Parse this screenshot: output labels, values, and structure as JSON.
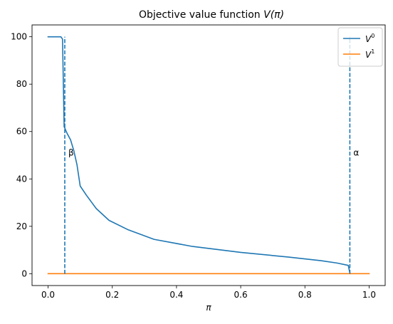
{
  "chart_data": {
    "type": "line",
    "title": "Objective value function V(π)",
    "title_parts": {
      "prefix": "Objective value function ",
      "func": "V",
      "arg": "(π)"
    },
    "xlabel": "π",
    "ylabel": "",
    "xlim": [
      -0.05,
      1.05
    ],
    "ylim": [
      -5,
      105
    ],
    "xticks": [
      0.0,
      0.2,
      0.4,
      0.6,
      0.8,
      1.0
    ],
    "xtick_labels": [
      "0.0",
      "0.2",
      "0.4",
      "0.6",
      "0.8",
      "1.0"
    ],
    "yticks": [
      0,
      20,
      40,
      60,
      80,
      100
    ],
    "ytick_labels": [
      "0",
      "20",
      "40",
      "60",
      "80",
      "100"
    ],
    "grid": false,
    "legend_position": "top-right",
    "colors": {
      "blue": "#1f77b4",
      "orange": "#ff7f0e"
    },
    "series": [
      {
        "name": "V⁰",
        "legend_base": "V",
        "legend_sup": "0",
        "color": "#1f77b4",
        "x": [
          0.0,
          0.04,
          0.045,
          0.05,
          0.052,
          0.055,
          0.06,
          0.07,
          0.08,
          0.09,
          0.1,
          0.12,
          0.15,
          0.19,
          0.25,
          0.33,
          0.45,
          0.6,
          0.75,
          0.85,
          0.9,
          0.935,
          0.94
        ],
        "y": [
          100,
          100,
          99,
          62,
          61.5,
          60.5,
          59,
          56.5,
          52,
          46,
          37,
          33,
          27.5,
          22.5,
          18.5,
          14.5,
          11.5,
          9,
          7,
          5.5,
          4.5,
          3.5,
          0.3
        ]
      },
      {
        "name": "V¹",
        "legend_base": "V",
        "legend_sup": "1",
        "color": "#ff7f0e",
        "x": [
          0.0,
          1.0
        ],
        "y": [
          0,
          0
        ]
      }
    ],
    "vlines": [
      {
        "label": "β",
        "x": 0.052,
        "y_from": 0,
        "y_to": 100,
        "label_y": 51,
        "color": "#1f77b4",
        "style": "dashed"
      },
      {
        "label": "α",
        "x": 0.94,
        "y_from": 0,
        "y_to": 100,
        "label_y": 51,
        "color": "#1f77b4",
        "style": "dashed"
      }
    ]
  }
}
